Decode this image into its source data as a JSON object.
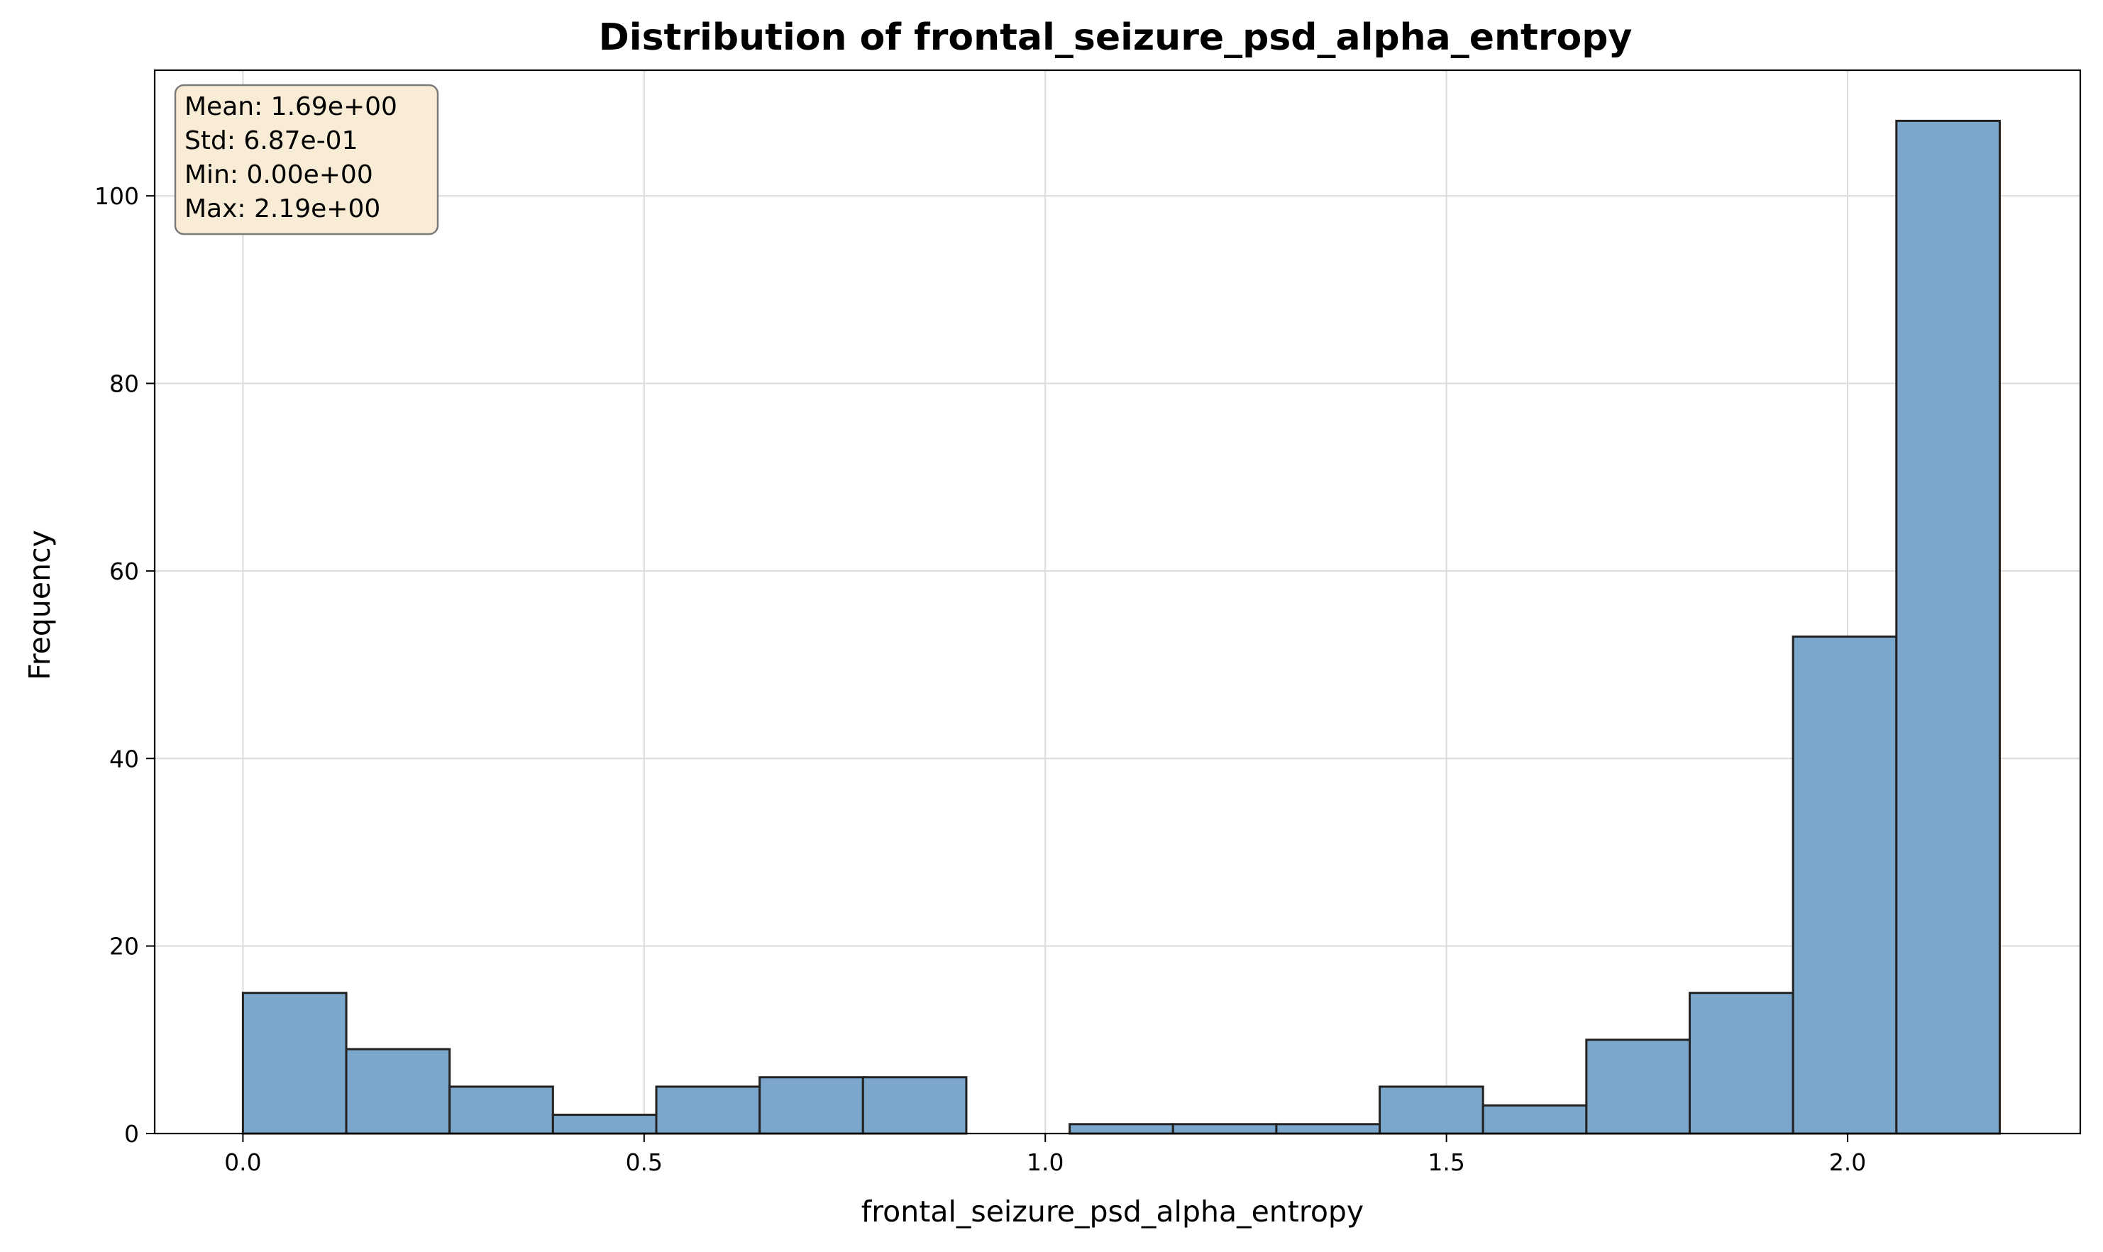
{
  "chart_data": {
    "type": "bar",
    "title": "Distribution of frontal_seizure_psd_alpha_entropy",
    "xlabel": "frontal_seizure_psd_alpha_entropy",
    "ylabel": "Frequency",
    "xlim": [
      -0.11,
      2.29
    ],
    "ylim": [
      0,
      113.4
    ],
    "xticks": [
      0.0,
      0.5,
      1.0,
      1.5,
      2.0
    ],
    "xtick_labels": [
      "0.0",
      "0.5",
      "1.0",
      "1.5",
      "2.0"
    ],
    "yticks": [
      0,
      20,
      40,
      60,
      80,
      100
    ],
    "ytick_labels": [
      "0",
      "20",
      "40",
      "60",
      "80",
      "100"
    ],
    "bin_edges": [
      0.0,
      0.1288,
      0.2576,
      0.3864,
      0.5152,
      0.644,
      0.7728,
      0.9016,
      1.0304,
      1.1592,
      1.288,
      1.4168,
      1.5456,
      1.6744,
      1.8032,
      1.932,
      2.0608,
      2.1896
    ],
    "values": [
      15,
      9,
      5,
      2,
      5,
      6,
      6,
      0,
      1,
      1,
      1,
      5,
      3,
      10,
      15,
      53,
      108
    ],
    "grid": true,
    "bar_color": "#7ba7cc",
    "edge_color": "#222222",
    "stats_box": {
      "lines": [
        "Mean: 1.69e+00",
        "Std: 6.87e-01",
        "Min: 0.00e+00",
        "Max: 2.19e+00"
      ],
      "background": "#f8ecd7",
      "border": "#7a7a7a",
      "placement": "top-left"
    }
  }
}
